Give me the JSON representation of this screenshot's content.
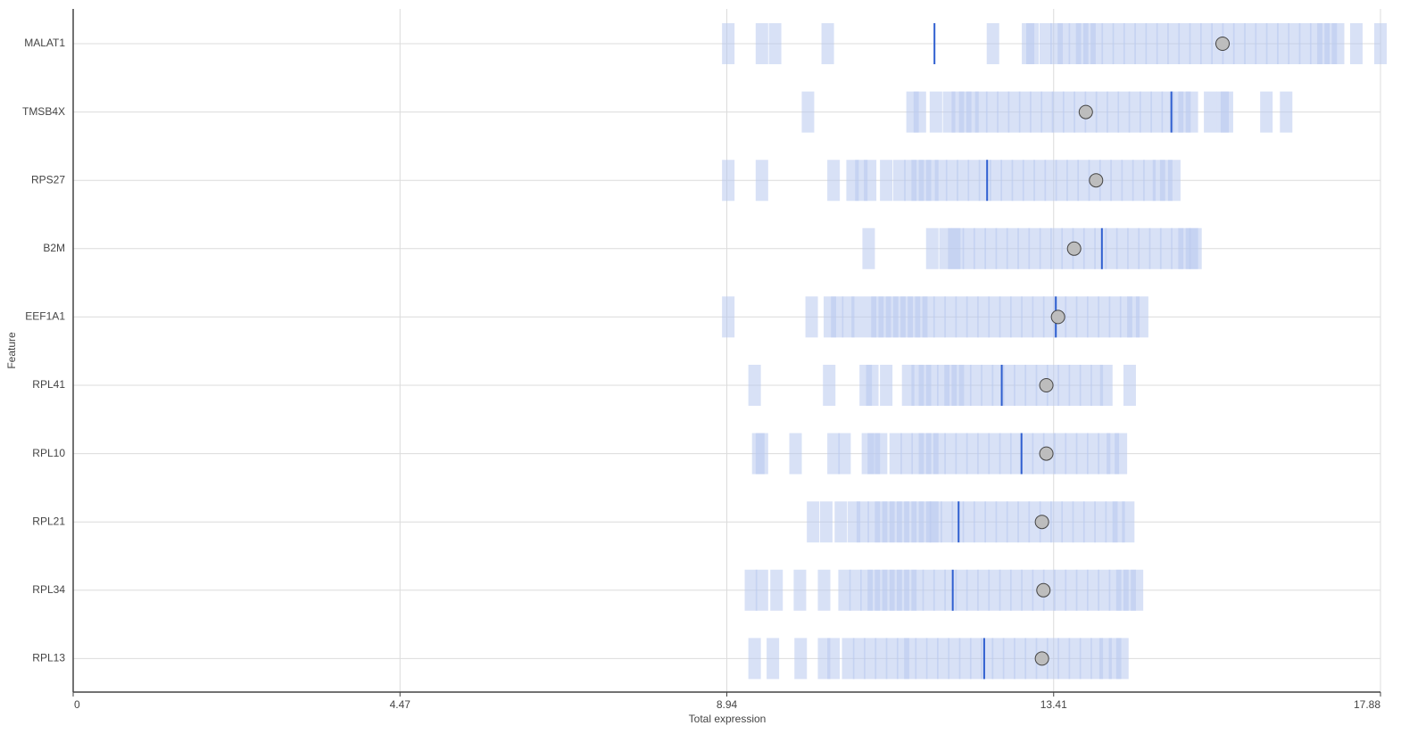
{
  "chart_data": {
    "type": "strip",
    "xlabel": "Total expression",
    "ylabel": "Feature",
    "xlim": [
      0,
      17.88
    ],
    "xticks": [
      0,
      4.47,
      8.94,
      13.41,
      17.88
    ],
    "grid": true,
    "rug_color": "#b8c8ee",
    "highlight_color": "#2f5fd0",
    "mean_color": "#bdbdbd",
    "categories": [
      "MALAT1",
      "TMSB4X",
      "RPS27",
      "B2M",
      "EEF1A1",
      "RPL41",
      "RPL10",
      "RPL21",
      "RPL34",
      "RPL13"
    ],
    "values": [
      [
        8.96,
        9.42,
        9.6,
        10.32,
        12.58,
        13.06,
        13.12,
        13.3,
        13.45,
        13.55,
        13.7,
        13.8,
        13.9,
        14.0,
        14.15,
        14.3,
        14.45,
        14.6,
        14.75,
        14.9,
        15.05,
        15.2,
        15.35,
        15.5,
        15.65,
        15.8,
        15.95,
        16.1,
        16.25,
        16.4,
        16.55,
        16.7,
        16.85,
        17.0,
        17.1,
        17.2,
        17.3,
        17.55,
        17.88
      ],
      [
        10.05,
        11.48,
        11.58,
        11.8,
        11.98,
        12.1,
        12.2,
        12.3,
        12.42,
        12.57,
        12.72,
        12.87,
        13.02,
        13.17,
        13.32,
        13.47,
        13.62,
        13.77,
        13.92,
        14.07,
        14.22,
        14.37,
        14.52,
        14.67,
        14.82,
        14.97,
        15.1,
        15.2,
        15.3,
        15.55,
        15.72,
        15.78,
        16.32,
        16.59
      ],
      [
        8.96,
        9.42,
        10.4,
        10.66,
        10.78,
        10.9,
        11.12,
        11.3,
        11.45,
        11.55,
        11.65,
        11.75,
        11.87,
        12.02,
        12.17,
        12.32,
        12.47,
        12.62,
        12.77,
        12.92,
        13.07,
        13.22,
        13.37,
        13.52,
        13.67,
        13.82,
        13.97,
        14.12,
        14.27,
        14.42,
        14.57,
        14.72,
        14.85,
        14.95,
        15.06
      ],
      [
        10.88,
        11.75,
        11.93,
        12.05,
        12.1,
        12.25,
        12.4,
        12.55,
        12.7,
        12.85,
        13.0,
        13.15,
        13.3,
        13.45,
        13.6,
        13.75,
        13.9,
        14.05,
        14.2,
        14.35,
        14.5,
        14.65,
        14.8,
        14.95,
        15.1,
        15.2,
        15.3,
        15.35
      ],
      [
        8.96,
        10.1,
        10.35,
        10.45,
        10.6,
        10.73,
        10.9,
        11.0,
        11.1,
        11.2,
        11.3,
        11.4,
        11.5,
        11.6,
        11.7,
        11.85,
        12.0,
        12.15,
        12.3,
        12.45,
        12.6,
        12.75,
        12.9,
        13.05,
        13.2,
        13.35,
        13.5,
        13.65,
        13.8,
        13.95,
        14.1,
        14.25,
        14.4,
        14.5,
        14.62
      ],
      [
        9.32,
        10.34,
        10.84,
        10.93,
        11.12,
        11.42,
        11.55,
        11.65,
        11.75,
        11.9,
        12.0,
        12.1,
        12.2,
        12.35,
        12.5,
        12.65,
        12.8,
        12.95,
        13.1,
        13.25,
        13.4,
        13.55,
        13.7,
        13.85,
        14.0,
        14.13,
        14.45
      ],
      [
        9.37,
        9.42,
        9.88,
        10.4,
        10.55,
        10.87,
        10.95,
        11.05,
        11.25,
        11.4,
        11.55,
        11.65,
        11.75,
        11.85,
        12.0,
        12.15,
        12.3,
        12.45,
        12.6,
        12.75,
        12.9,
        13.05,
        13.2,
        13.35,
        13.5,
        13.65,
        13.8,
        13.95,
        14.1,
        14.22,
        14.33
      ],
      [
        10.12,
        10.3,
        10.5,
        10.68,
        10.8,
        10.95,
        11.05,
        11.15,
        11.25,
        11.35,
        11.45,
        11.55,
        11.65,
        11.75,
        11.8,
        11.95,
        12.1,
        12.25,
        12.4,
        12.55,
        12.7,
        12.85,
        13.0,
        13.15,
        13.3,
        13.45,
        13.6,
        13.75,
        13.9,
        14.05,
        14.2,
        14.3,
        14.43
      ],
      [
        9.27,
        9.42,
        9.62,
        9.94,
        10.27,
        10.55,
        10.7,
        10.85,
        10.95,
        11.05,
        11.15,
        11.25,
        11.35,
        11.45,
        11.55,
        11.7,
        11.85,
        12.0,
        12.15,
        12.3,
        12.45,
        12.6,
        12.75,
        12.9,
        13.05,
        13.2,
        13.35,
        13.5,
        13.65,
        13.8,
        13.95,
        14.1,
        14.25,
        14.35,
        14.45,
        14.55
      ],
      [
        9.32,
        9.57,
        9.95,
        10.27,
        10.4,
        10.6,
        10.75,
        10.9,
        11.05,
        11.2,
        11.35,
        11.45,
        11.6,
        11.75,
        11.9,
        12.05,
        12.2,
        12.35,
        12.5,
        12.65,
        12.8,
        12.95,
        13.1,
        13.25,
        13.4,
        13.55,
        13.7,
        13.85,
        14.0,
        14.12,
        14.25,
        14.35
      ]
    ],
    "highlight": [
      11.78,
      15.02,
      12.5,
      14.07,
      13.44,
      12.7,
      12.97,
      12.11,
      12.03,
      12.46
    ],
    "means": [
      15.72,
      13.85,
      13.99,
      13.69,
      13.47,
      13.31,
      13.31,
      13.25,
      13.27,
      13.25
    ]
  }
}
